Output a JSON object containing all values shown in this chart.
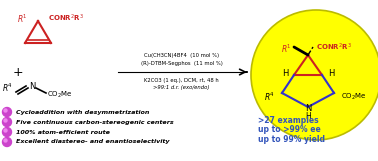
{
  "background_color": "#ffffff",
  "rc_line1": "Cu(CH3CN)4BF4  (10 mol %)",
  "rc_line2": "(R)-DTBM-Segphos  (11 mol %)",
  "rc_line3": "K2CO3 (1 eq.), DCM, rt, 48 h",
  "rc_line4": ">99:1 d.r. (exo/endo)",
  "bullet_points": [
    "Cycloaddition with desymmetrization",
    "Five continuous carbon-stereogenic centers",
    "100% atom-efficient route",
    "Excellent diastereo- and enantioselectivity"
  ],
  "right_text_line1": ">27 examples",
  "right_text_line2": "up to >99% ee",
  "right_text_line3": "up to 99% yield",
  "bullet_color": "#cc44cc",
  "right_text_color": "#3355bb",
  "cyclopropene_color": "#cc2222",
  "product_red_color": "#cc2222",
  "product_blue_color": "#3333cc",
  "sphere_color": "#ffff00",
  "sphere_edge_color": "#bbbb00",
  "text_color": "#000000"
}
